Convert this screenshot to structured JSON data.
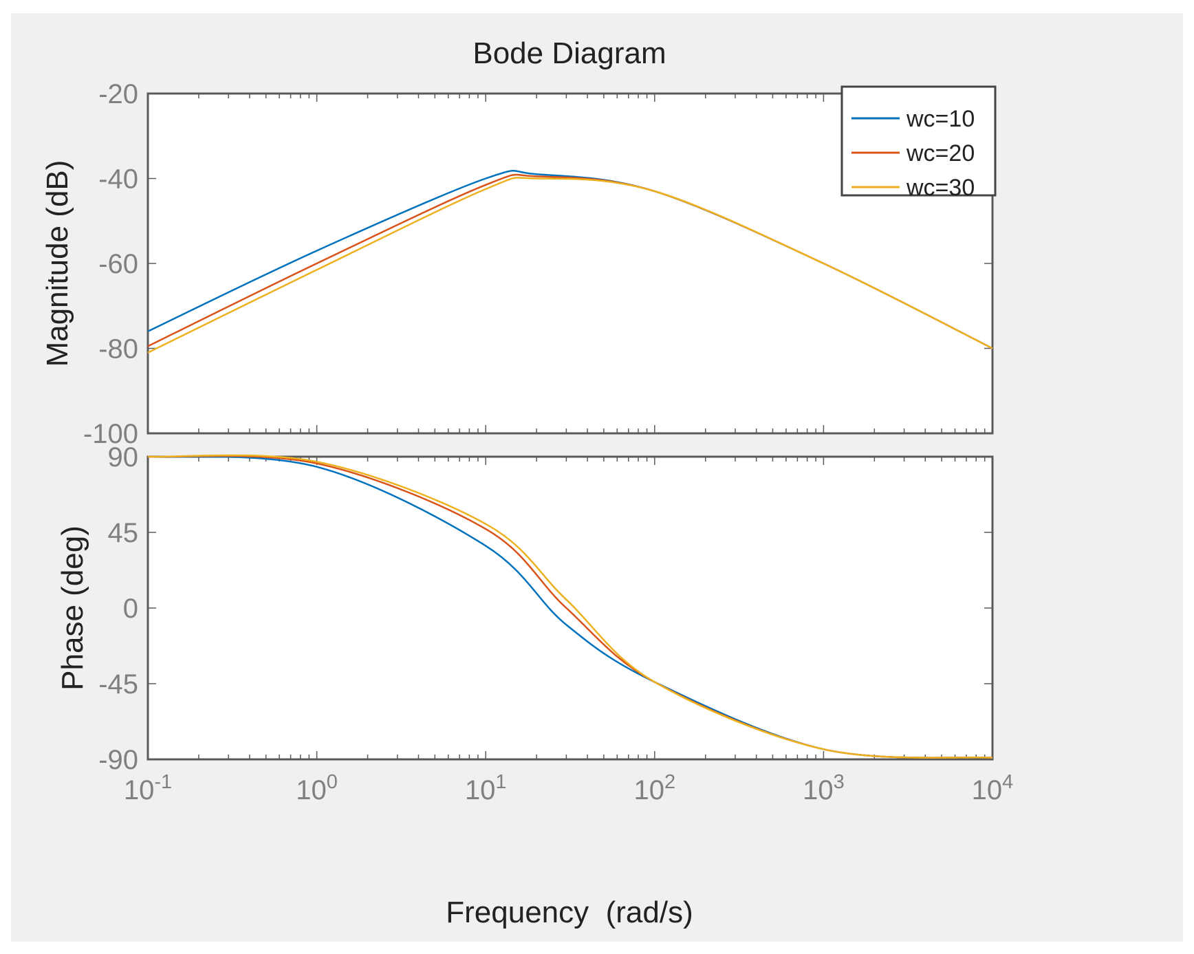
{
  "chart_data": {
    "type": "line",
    "title": "Bode Diagram",
    "xlabel": "Frequency  (rad/s)",
    "xscale": "log",
    "xlim": [
      0.1,
      10000
    ],
    "x_ticks": [
      0.1,
      1,
      10,
      100,
      1000,
      10000
    ],
    "x_tick_labels": [
      {
        "base": "10",
        "exp": "-1"
      },
      {
        "base": "10",
        "exp": "0"
      },
      {
        "base": "10",
        "exp": "1"
      },
      {
        "base": "10",
        "exp": "2"
      },
      {
        "base": "10",
        "exp": "3"
      },
      {
        "base": "10",
        "exp": "4"
      }
    ],
    "legend": {
      "placement": "top-right",
      "entries": [
        "wc=10",
        "wc=20",
        "wc=30"
      ]
    },
    "series": [
      {
        "name": "wc=10",
        "color": "#0072bd",
        "wc": 10
      },
      {
        "name": "wc=20",
        "color": "#d95319",
        "wc": 20
      },
      {
        "name": "wc=30",
        "color": "#edb120",
        "wc": 30
      }
    ],
    "subplots": [
      {
        "name": "magnitude",
        "ylabel": "Magnitude (dB)",
        "ylim": [
          -100,
          -20
        ],
        "y_ticks": [
          -100,
          -80,
          -60,
          -40,
          -20
        ],
        "y_tick_labels": [
          "-100",
          "-80",
          "-60",
          "-40",
          "-20"
        ],
        "grid": false,
        "points": [
          {
            "x": 0.1,
            "y": [
              -76,
              -79.5,
              -81
            ]
          },
          {
            "x": 1,
            "y": [
              -57,
              -60,
              -61.5
            ]
          },
          {
            "x": 10,
            "y": [
              -40,
              -41.5,
              -42.5
            ]
          },
          {
            "x": 20,
            "y": [
              -39,
              -39.5,
              -40
            ]
          },
          {
            "x": 100,
            "y": [
              -43,
              -43,
              -43
            ]
          },
          {
            "x": 1000,
            "y": [
              -60,
              -60,
              -60
            ]
          },
          {
            "x": 10000,
            "y": [
              -80,
              -80,
              -80
            ]
          }
        ]
      },
      {
        "name": "phase",
        "ylabel": "Phase (deg)",
        "ylim": [
          -90,
          90
        ],
        "y_ticks": [
          -90,
          -45,
          0,
          45,
          90
        ],
        "y_tick_labels": [
          "-90",
          "-45",
          "0",
          "45",
          "90"
        ],
        "grid": false,
        "points": [
          {
            "x": 0.1,
            "y": [
              90,
              90,
              90
            ]
          },
          {
            "x": 1,
            "y": [
              84,
              86,
              87
            ]
          },
          {
            "x": 10,
            "y": [
              37,
              47,
              50
            ]
          },
          {
            "x": 30,
            "y": [
              -10,
              0,
              5
            ]
          },
          {
            "x": 100,
            "y": [
              -44,
              -44,
              -44
            ]
          },
          {
            "x": 1000,
            "y": [
              -84,
              -84,
              -84
            ]
          },
          {
            "x": 10000,
            "y": [
              -89,
              -89,
              -89
            ]
          }
        ]
      }
    ]
  }
}
